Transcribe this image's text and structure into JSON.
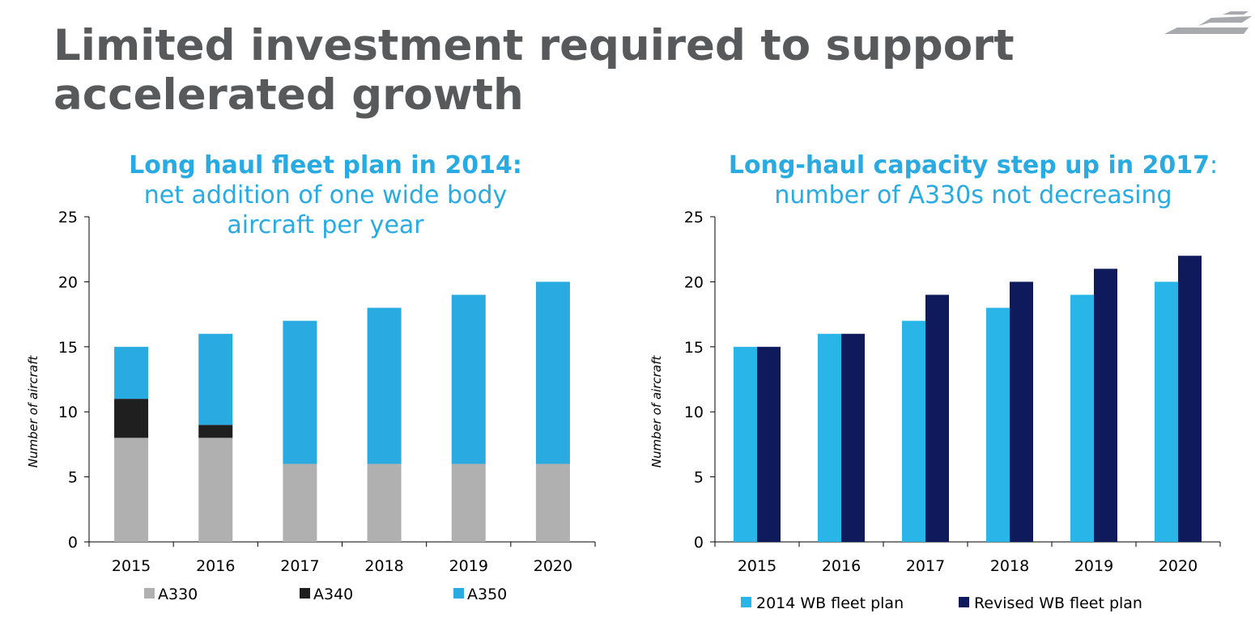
{
  "title": "Limited investment required to support accelerated growth",
  "colors": {
    "title": "#58595b",
    "accent": "#29abe2",
    "a330": "#b0b0b0",
    "a340": "#1f1f1f",
    "a350": "#29abe2",
    "plan2014": "#29b5e8",
    "revised": "#0e1a5c"
  },
  "left": {
    "heading_bold": "Long haul fleet plan in 2014:",
    "heading_rest": "net addition of one wide body aircraft per year"
  },
  "right": {
    "heading_bold": "Long-haul capacity step up in 2017",
    "heading_colon": ":",
    "heading_rest": "number of A330s not decreasing"
  },
  "chart_data": [
    {
      "type": "bar",
      "stacked": true,
      "categories": [
        "2015",
        "2016",
        "2017",
        "2018",
        "2019",
        "2020"
      ],
      "series": [
        {
          "name": "A330",
          "values": [
            8,
            8,
            6,
            6,
            6,
            6
          ],
          "color": "#b0b0b0"
        },
        {
          "name": "A340",
          "values": [
            3,
            1,
            0,
            0,
            0,
            0
          ],
          "color": "#1f1f1f"
        },
        {
          "name": "A350",
          "values": [
            4,
            7,
            11,
            12,
            13,
            14
          ],
          "color": "#29abe2"
        }
      ],
      "ylabel": "Number of aircraft",
      "ylim": [
        0,
        25
      ],
      "yticks": [
        "0",
        "5",
        "10",
        "15",
        "20",
        "25"
      ],
      "grid": false,
      "legend": "bottom"
    },
    {
      "type": "bar",
      "stacked": false,
      "categories": [
        "2015",
        "2016",
        "2017",
        "2018",
        "2019",
        "2020"
      ],
      "series": [
        {
          "name": "2014 WB fleet plan",
          "values": [
            15,
            16,
            17,
            18,
            19,
            20
          ],
          "color": "#29b5e8"
        },
        {
          "name": "Revised WB fleet plan",
          "values": [
            15,
            16,
            19,
            20,
            21,
            22
          ],
          "color": "#0e1a5c"
        }
      ],
      "ylabel": "Number of aircraft",
      "ylim": [
        0,
        25
      ],
      "yticks": [
        "0",
        "5",
        "10",
        "15",
        "20",
        "25"
      ],
      "grid": false,
      "legend": "bottom"
    }
  ]
}
